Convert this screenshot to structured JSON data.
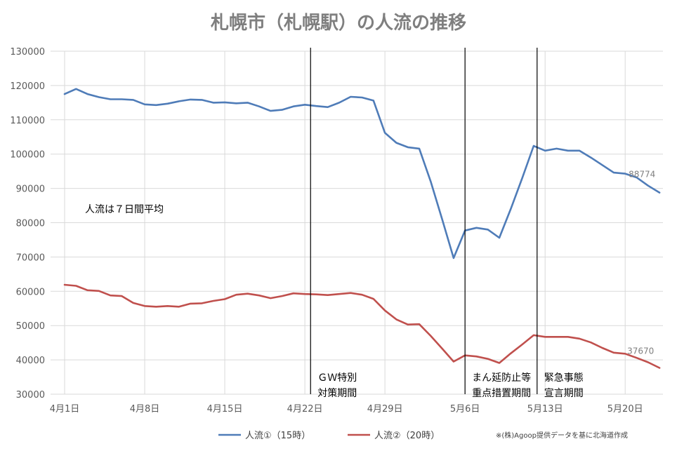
{
  "chart_data": {
    "type": "line",
    "title": "札幌市（札幌駅）の人流の推移",
    "ylim": [
      30000,
      130000
    ],
    "y_ticks": [
      30000,
      40000,
      50000,
      60000,
      70000,
      80000,
      90000,
      100000,
      110000,
      120000,
      130000
    ],
    "x_tick_labels": [
      {
        "day": 0,
        "label": "4月1日"
      },
      {
        "day": 7,
        "label": "4月8日"
      },
      {
        "day": 14,
        "label": "4月15日"
      },
      {
        "day": 21,
        "label": "4月22日"
      },
      {
        "day": 28,
        "label": "4月29日"
      },
      {
        "day": 35,
        "label": "5月6日"
      },
      {
        "day": 42,
        "label": "5月13日"
      },
      {
        "day": 49,
        "label": "5月20日"
      }
    ],
    "grid": true,
    "legend_position": "bottom",
    "x": [
      0,
      1,
      2,
      3,
      4,
      5,
      6,
      7,
      8,
      9,
      10,
      11,
      12,
      13,
      14,
      15,
      16,
      17,
      18,
      19,
      20,
      21,
      22,
      23,
      24,
      25,
      26,
      27,
      28,
      29,
      30,
      31,
      32,
      33,
      34,
      35,
      36,
      37,
      38,
      39,
      40,
      41,
      42,
      43,
      44,
      45,
      46,
      47,
      48,
      49,
      50,
      51,
      52
    ],
    "series": [
      {
        "name": "人流①（15時）",
        "color": "#4f7cb8",
        "values": [
          117500,
          119000,
          117500,
          116600,
          116000,
          116000,
          115800,
          114500,
          114300,
          114700,
          115400,
          115900,
          115800,
          115000,
          115100,
          114800,
          115000,
          113900,
          112600,
          112900,
          113900,
          114400,
          114000,
          113700,
          115000,
          116700,
          116500,
          115600,
          106200,
          103300,
          102000,
          101600,
          92000,
          81000,
          69700,
          77700,
          78500,
          78000,
          75600,
          84000,
          93000,
          102400,
          101000,
          101600,
          101000,
          101000,
          99000,
          96800,
          94600,
          94300,
          93200,
          90800,
          88774
        ],
        "end_label": "88774"
      },
      {
        "name": "人流②（20時）",
        "color": "#c0504d",
        "values": [
          61900,
          61600,
          60300,
          60100,
          58800,
          58600,
          56600,
          55700,
          55500,
          55700,
          55500,
          56400,
          56500,
          57200,
          57700,
          59000,
          59300,
          58800,
          58000,
          58600,
          59400,
          59200,
          59100,
          58900,
          59200,
          59500,
          59000,
          57800,
          54400,
          51800,
          50300,
          50400,
          47000,
          43300,
          39500,
          41300,
          41000,
          40300,
          39100,
          41900,
          44500,
          47200,
          46700,
          46700,
          46700,
          46200,
          45100,
          43500,
          42100,
          41800,
          40600,
          39300,
          37670
        ],
        "end_label": "37670"
      }
    ],
    "period_markers": [
      {
        "day": 21.5,
        "label_lines": [
          "ＧＷ特別",
          "対策期間"
        ]
      },
      {
        "day": 35.0,
        "label_lines": [
          "まん延防止等",
          "重点措置期間"
        ]
      },
      {
        "day": 41.3,
        "label_lines": [
          "緊急事態",
          "宣言期間"
        ]
      }
    ],
    "annotation": "人流は７日間平均",
    "source": "※(株)Agoop提供データを基に北海道作成"
  }
}
